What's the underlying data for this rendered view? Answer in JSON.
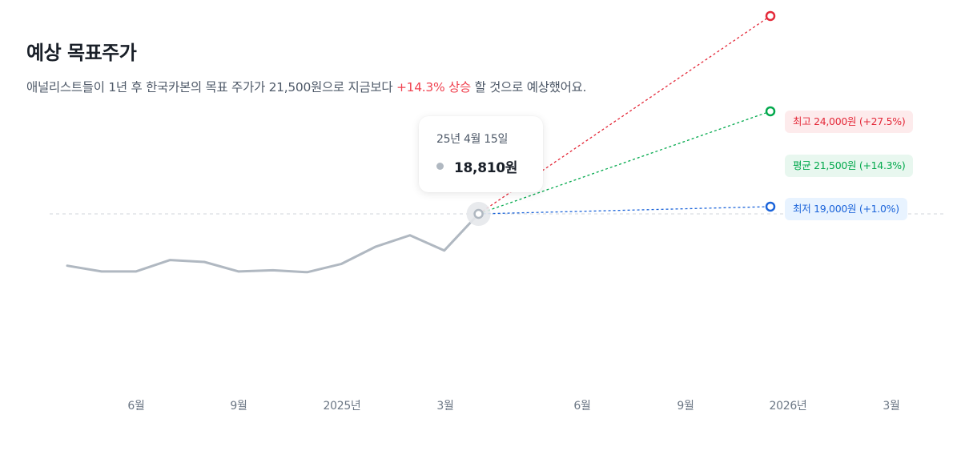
{
  "header": {
    "title": "예상 목표주가",
    "subtitle_pre": "애널리스트들이 1년 후 한국카본의 목표 주가가 21,500원으로 지금보다 ",
    "subtitle_highlight": "+14.3% 상승",
    "subtitle_post": " 할 것으로 예상했어요."
  },
  "tooltip": {
    "date": "25년 4월 15일",
    "value": "18,810원"
  },
  "targets": {
    "high_label": "최고 24,000원 (+27.5%)",
    "avg_label": "평균 21,500원 (+14.3%)",
    "low_label": "최저 19,000원 (+1.0%)"
  },
  "colors": {
    "price_line": "#b0b8c1",
    "high": "#e42939",
    "avg": "#03a94d",
    "low": "#1b64da"
  },
  "chart_data": {
    "type": "line",
    "x_tick_labels": [
      "6월",
      "9월",
      "2025년",
      "3월",
      "6월",
      "9월",
      "2026년",
      "3월"
    ],
    "series": [
      {
        "values": [
          17450,
          17300,
          17300,
          17600,
          17550,
          17300,
          17330,
          17280,
          17500,
          17950,
          18250,
          17850,
          18810
        ]
      }
    ],
    "current_price": 18810,
    "targets": {
      "high": 24000,
      "average": 21500,
      "low": 19000
    },
    "reference_line": 18810
  }
}
